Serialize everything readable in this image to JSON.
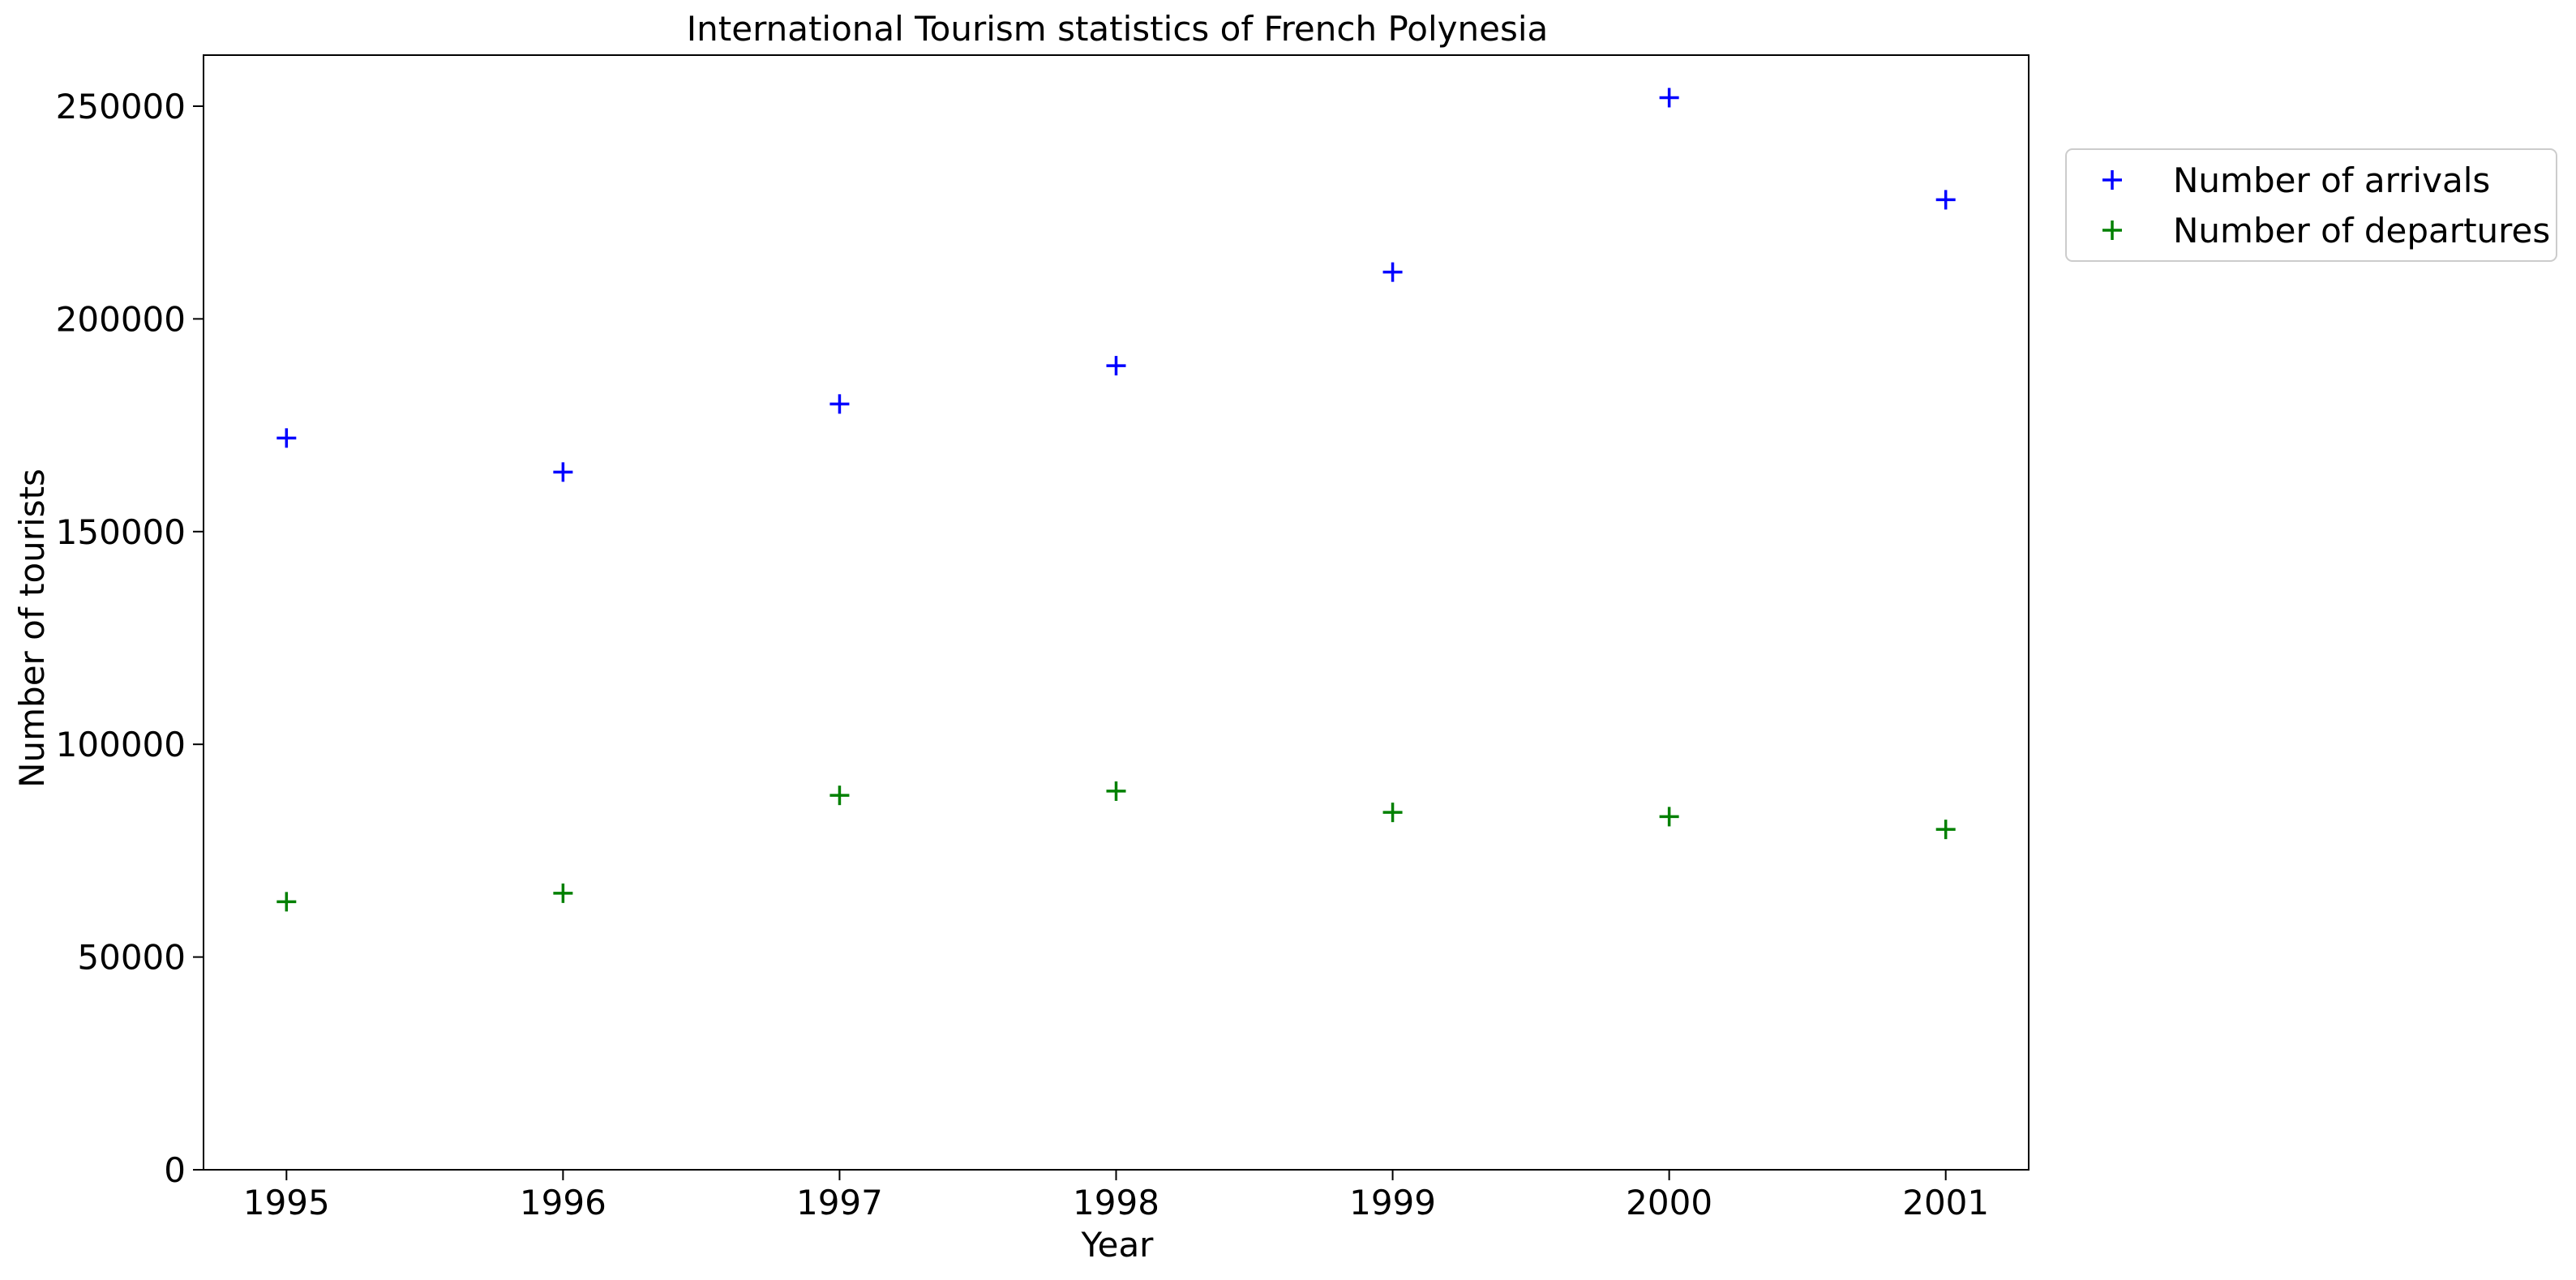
{
  "chart_data": {
    "type": "scatter",
    "title": "International Tourism statistics of French Polynesia",
    "xlabel": "Year",
    "ylabel": "Number of tourists",
    "x": [
      1995,
      1996,
      1997,
      1998,
      1999,
      2000,
      2001
    ],
    "x_ticks": [
      "1995",
      "1996",
      "1997",
      "1998",
      "1999",
      "2000",
      "2001"
    ],
    "xlim": [
      1994.7,
      2001.3
    ],
    "ylim": [
      0,
      262000
    ],
    "y_ticks": [
      0,
      50000,
      100000,
      150000,
      200000,
      250000
    ],
    "y_tick_labels": [
      "0",
      "50000",
      "100000",
      "150000",
      "200000",
      "250000"
    ],
    "marker": "+",
    "grid": false,
    "legend_position": "outside-right-top",
    "series": [
      {
        "name": "Number of arrivals",
        "color": "#0000ff",
        "values": [
          172000,
          164000,
          180000,
          189000,
          211000,
          252000,
          228000
        ]
      },
      {
        "name": "Number of departures",
        "color": "#008000",
        "values": [
          63000,
          65000,
          88000,
          89000,
          84000,
          83000,
          80000
        ]
      }
    ]
  }
}
